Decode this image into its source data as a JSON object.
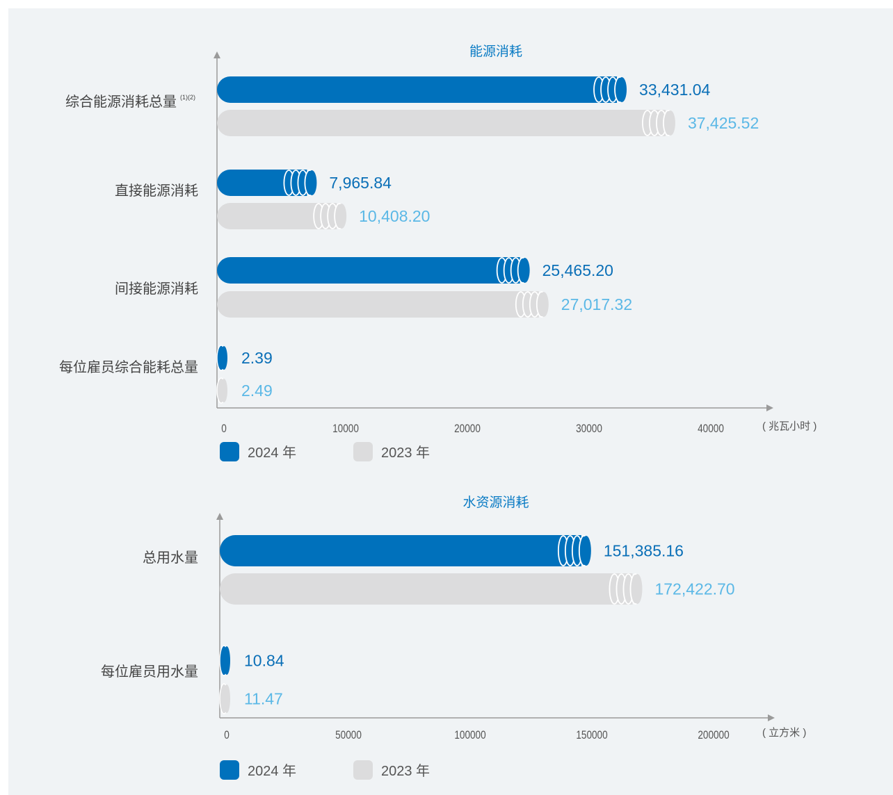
{
  "colors": {
    "series_2024": "#0071bc",
    "series_2023": "#dcdcdd",
    "label_2024": "#0a6fb7",
    "label_2023": "#5bb8e6",
    "category_text": "#444444",
    "axis": "#9a9a9a",
    "title": "#0a7bc4"
  },
  "chart_data": [
    {
      "type": "bar",
      "orientation": "horizontal",
      "title": "能源消耗",
      "unit_label": "( 兆瓦小时 )",
      "categories": [
        "综合能源消耗总量",
        "直接能源消耗",
        "间接能源消耗",
        "每位雇员综合能耗总量"
      ],
      "category_superscripts": [
        "(1)(2)",
        "",
        "",
        ""
      ],
      "series": [
        {
          "name": "2024 年",
          "values": [
            33431.04,
            7965.84,
            25465.2,
            2.39
          ],
          "value_labels": [
            "33,431.04",
            "7,965.84",
            "25,465.20",
            "2.39"
          ]
        },
        {
          "name": "2023 年",
          "values": [
            37425.52,
            10408.2,
            27017.32,
            2.49
          ],
          "value_labels": [
            "37,425.52",
            "10,408.20",
            "27,017.32",
            "2.49"
          ]
        }
      ],
      "xlim": [
        0,
        45000
      ],
      "xticks": [
        0,
        10000,
        20000,
        30000,
        40000
      ],
      "legend_position": "bottom-left",
      "grid": false
    },
    {
      "type": "bar",
      "orientation": "horizontal",
      "title": "水资源消耗",
      "unit_label": "( 立方米 )",
      "categories": [
        "总用水量",
        "每位雇员用水量"
      ],
      "category_superscripts": [
        "",
        ""
      ],
      "series": [
        {
          "name": "2024 年",
          "values": [
            151385.16,
            10.84
          ],
          "value_labels": [
            "151,385.16",
            "10.84"
          ]
        },
        {
          "name": "2023 年",
          "values": [
            172422.7,
            11.47
          ],
          "value_labels": [
            "172,422.70",
            "11.47"
          ]
        }
      ],
      "xlim": [
        0,
        225000
      ],
      "xticks": [
        0,
        50000,
        100000,
        150000,
        200000
      ],
      "legend_position": "bottom-left",
      "grid": false
    }
  ]
}
